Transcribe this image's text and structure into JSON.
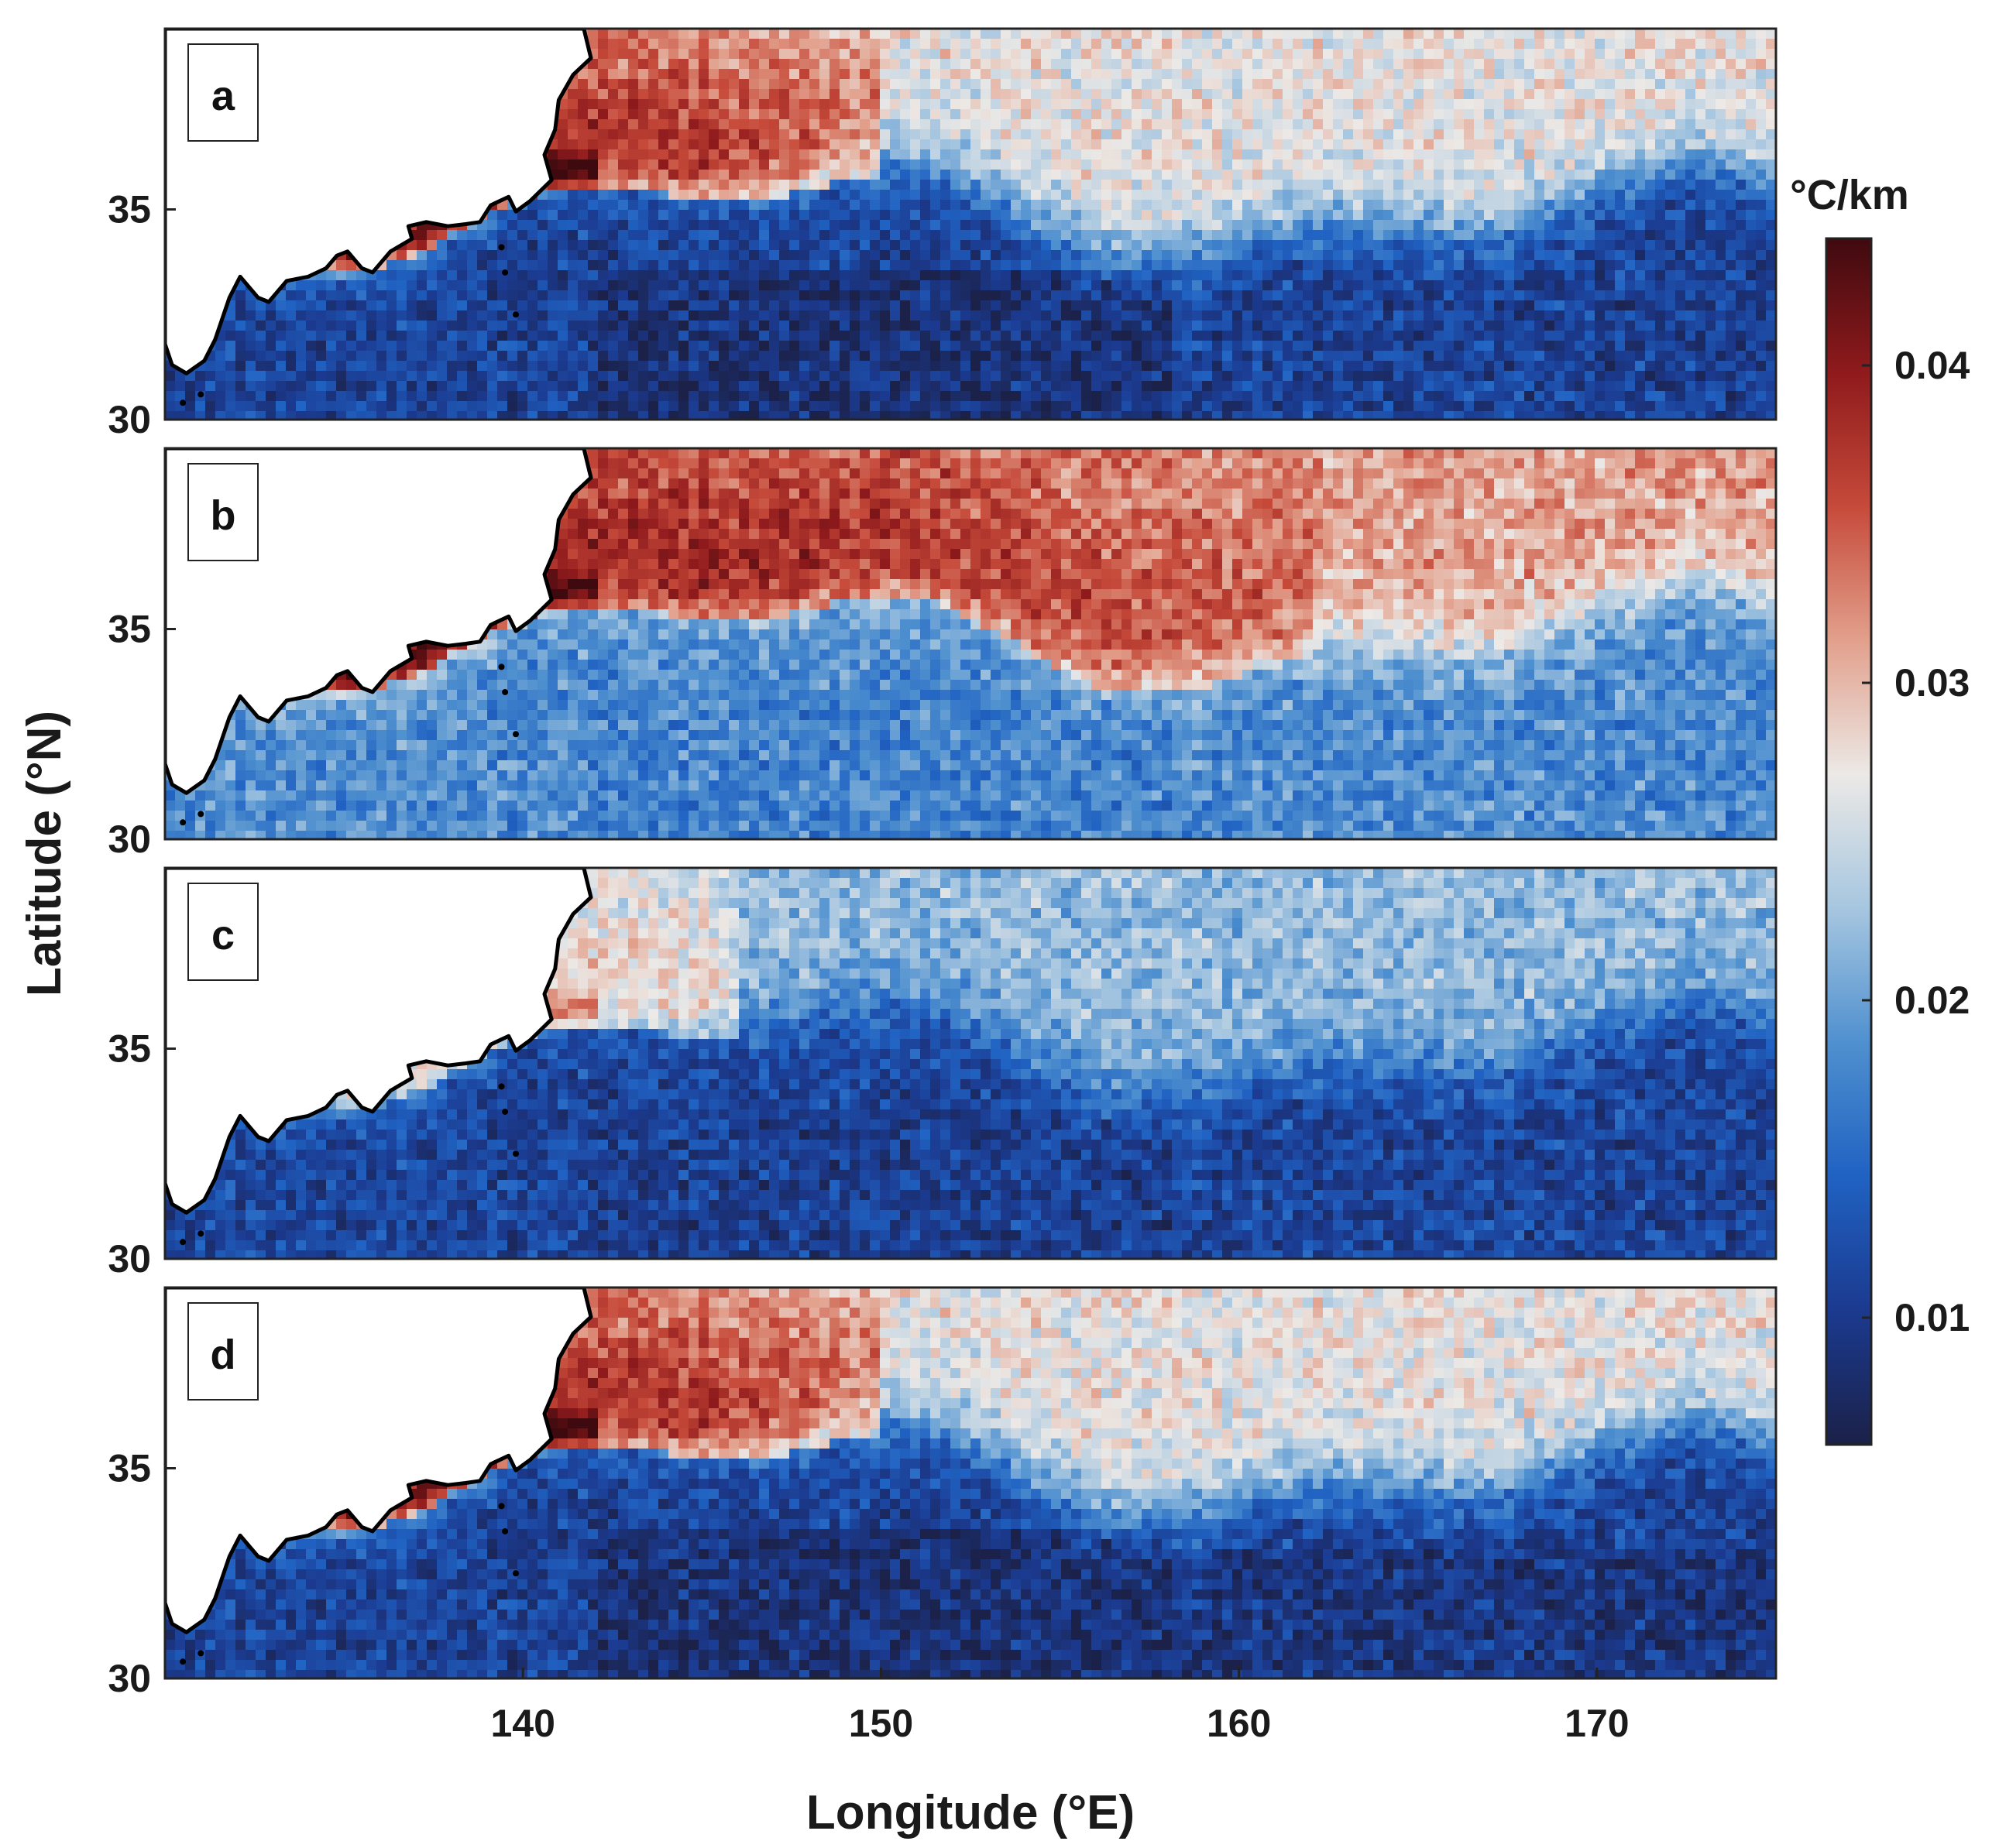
{
  "figure": {
    "x_axis_title": "Longitude (°E)",
    "y_axis_title": "Latitude (°N)",
    "x_ticks": [
      "140",
      "150",
      "160",
      "170"
    ],
    "y_ticks": [
      "30",
      "35"
    ],
    "x_range": [
      130,
      175
    ],
    "y_range": [
      30,
      39.3
    ],
    "colorbar": {
      "unit": "°C/km",
      "ticks": [
        "0.01",
        "0.02",
        "0.03",
        "0.04"
      ],
      "range": [
        0.006,
        0.044
      ],
      "colors": [
        "#1b2148",
        "#1b3a8f",
        "#2062c2",
        "#4f90cf",
        "#a6c6e0",
        "#ece9e6",
        "#e2a08c",
        "#c64a3a",
        "#8f1a1c",
        "#3f0a0f"
      ]
    },
    "land_color": "#ffffff",
    "coastline_color": "#000000"
  },
  "panels": [
    {
      "letter": "a",
      "intensity": "strong",
      "note": "broad red north of Kuroshio Extension, dark blue south"
    },
    {
      "letter": "b",
      "intensity": "high",
      "note": "widespread warm/red north, lighter blue south"
    },
    {
      "letter": "c",
      "intensity": "weak",
      "note": "narrow red band along coast, mostly blue"
    },
    {
      "letter": "d",
      "intensity": "strong",
      "note": "red tongue east of Japan, dark blue south"
    }
  ]
}
